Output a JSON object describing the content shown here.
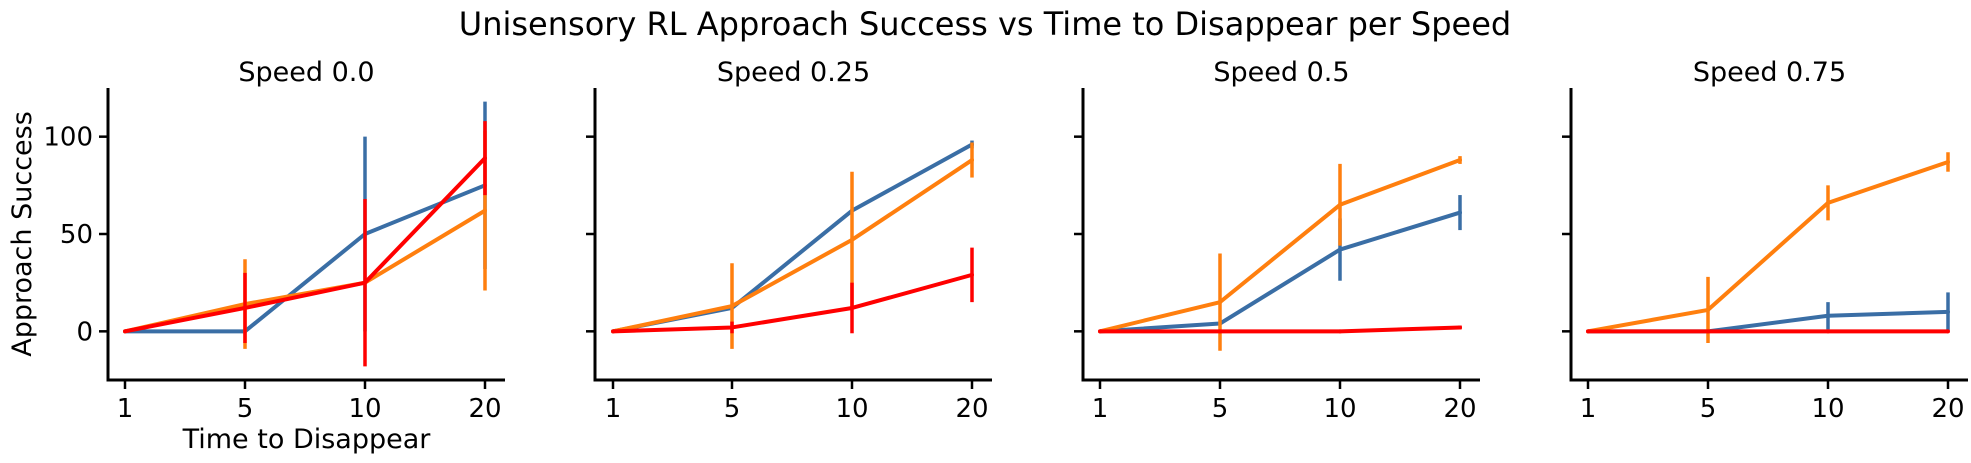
{
  "figure": {
    "title": "Unisensory RL Approach Success vs Time to Disappear per Speed"
  },
  "chart_data": [
    {
      "type": "line",
      "title": "Speed 0.0",
      "xlabel": "Time to Disappear",
      "ylabel": "Approach Success",
      "categories": [
        "1",
        "5",
        "10",
        "20"
      ],
      "ylim": [
        -25,
        125
      ],
      "yticks": [
        0,
        50,
        100
      ],
      "series": [
        {
          "color": "#3A6EA5",
          "values": [
            0,
            0,
            50,
            75
          ],
          "err": [
            0,
            0,
            50,
            43
          ]
        },
        {
          "color": "#FF7F0E",
          "values": [
            0,
            14,
            25,
            62
          ],
          "err": [
            0,
            23,
            0,
            41
          ]
        },
        {
          "color": "#FF0000",
          "values": [
            0,
            12,
            25,
            89
          ],
          "err": [
            0,
            18,
            43,
            19
          ]
        }
      ]
    },
    {
      "type": "line",
      "title": "Speed 0.25",
      "categories": [
        "1",
        "5",
        "10",
        "20"
      ],
      "ylim": [
        -25,
        125
      ],
      "yticks": [
        0,
        50,
        100
      ],
      "series": [
        {
          "color": "#3A6EA5",
          "values": [
            0,
            12,
            62,
            96
          ],
          "err": [
            0,
            0,
            0,
            2
          ]
        },
        {
          "color": "#FF7F0E",
          "values": [
            0,
            13,
            47,
            88
          ],
          "err": [
            0,
            22,
            35,
            9
          ]
        },
        {
          "color": "#FF0000",
          "values": [
            0,
            2,
            12,
            29
          ],
          "err": [
            0,
            3,
            13,
            14
          ]
        }
      ]
    },
    {
      "type": "line",
      "title": "Speed 0.5",
      "categories": [
        "1",
        "5",
        "10",
        "20"
      ],
      "ylim": [
        -25,
        125
      ],
      "yticks": [
        0,
        50,
        100
      ],
      "series": [
        {
          "color": "#3A6EA5",
          "values": [
            0,
            4,
            42,
            61
          ],
          "err": [
            0,
            0,
            16,
            9
          ]
        },
        {
          "color": "#FF7F0E",
          "values": [
            0,
            15,
            65,
            88
          ],
          "err": [
            0,
            25,
            21,
            2
          ]
        },
        {
          "color": "#FF0000",
          "values": [
            0,
            0,
            0,
            2
          ],
          "err": [
            0,
            0,
            0,
            1
          ]
        }
      ]
    },
    {
      "type": "line",
      "title": "Speed 0.75",
      "categories": [
        "1",
        "5",
        "10",
        "20"
      ],
      "ylim": [
        -25,
        125
      ],
      "yticks": [
        0,
        50,
        100
      ],
      "series": [
        {
          "color": "#3A6EA5",
          "values": [
            0,
            0,
            8,
            10
          ],
          "err": [
            0,
            0,
            7,
            10
          ]
        },
        {
          "color": "#FF7F0E",
          "values": [
            0,
            11,
            66,
            87
          ],
          "err": [
            0,
            17,
            9,
            5
          ]
        },
        {
          "color": "#FF0000",
          "values": [
            0,
            0,
            0,
            0
          ],
          "err": [
            0,
            0,
            0,
            0
          ]
        }
      ]
    }
  ]
}
